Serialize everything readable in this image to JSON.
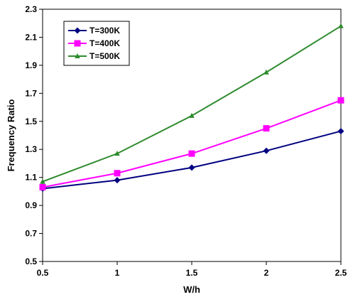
{
  "chart_data": {
    "type": "line",
    "title": "",
    "xlabel": "W/h",
    "ylabel": "Frequency Ratio",
    "x": [
      0.5,
      1,
      1.5,
      2,
      2.5
    ],
    "xlim": [
      0.5,
      2.5
    ],
    "ylim": [
      0.5,
      2.3
    ],
    "xticks": [
      "0.5",
      "1",
      "1.5",
      "2",
      "2.5"
    ],
    "yticks": [
      "0.5",
      "0.7",
      "0.9",
      "1.1",
      "1.3",
      "1.5",
      "1.7",
      "1.9",
      "2.1",
      "2.3"
    ],
    "grid": false,
    "legend_position": "top-left",
    "series": [
      {
        "name": "T=300K",
        "values": [
          1.02,
          1.08,
          1.17,
          1.29,
          1.43
        ],
        "color": "#000080",
        "marker": "diamond"
      },
      {
        "name": "T=400K",
        "values": [
          1.03,
          1.13,
          1.27,
          1.45,
          1.65
        ],
        "color": "#ff00ff",
        "marker": "square"
      },
      {
        "name": "T=500K",
        "values": [
          1.07,
          1.27,
          1.54,
          1.85,
          2.18
        ],
        "color": "#2e8b2e",
        "marker": "triangle"
      }
    ]
  }
}
